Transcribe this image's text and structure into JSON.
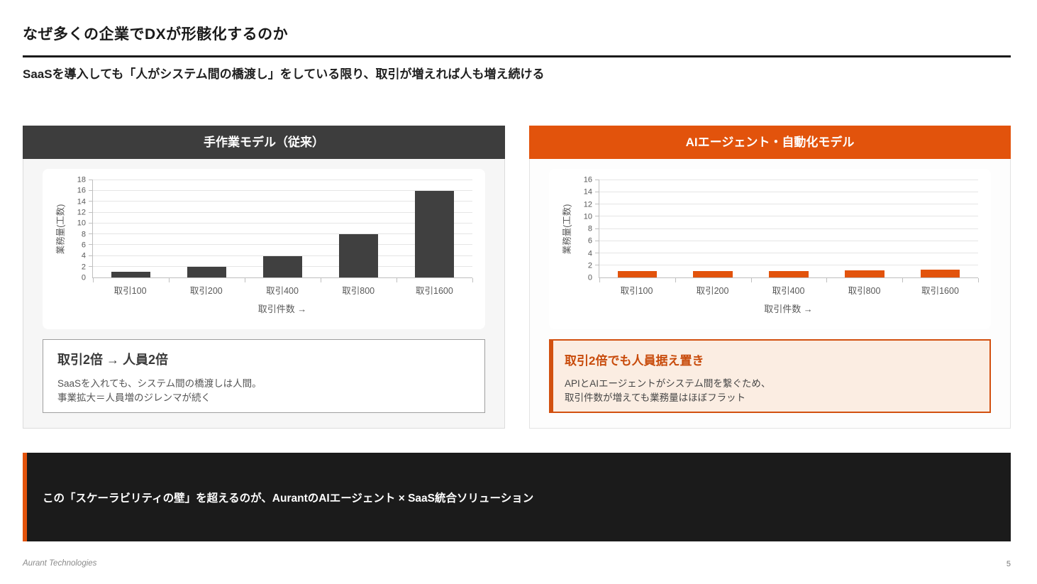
{
  "slide": {
    "title": "なぜ多くの企業でDXが形骸化するのか",
    "subtitle": "SaaSを導入しても「人がシステム間の橋渡し」をしている限り、取引が増えれば人も増え続ける"
  },
  "left_panel": {
    "header": "手作業モデル（従来）",
    "callout": {
      "title": "取引2倍 → 人員2倍",
      "line1": "SaaSを入れても、システム間の橋渡しは人間。",
      "line2": "事業拡大＝人員増のジレンマが続く"
    }
  },
  "right_panel": {
    "header": "AIエージェント・自動化モデル",
    "callout": {
      "title": "取引2倍でも人員据え置き",
      "line1": "APIとAIエージェントがシステム間を繋ぐため、",
      "line2": "取引件数が増えても業務量はほぼフラット"
    }
  },
  "banner": {
    "text": "この「スケーラビリティの壁」を超えるのが、AurantのAIエージェント × SaaS統合ソリューション"
  },
  "footer": {
    "company": "Aurant Technologies",
    "page_number": "5"
  },
  "colors": {
    "accent_orange": "#e2530c",
    "dark_header": "#3d3d3d",
    "banner_bg": "#1b1b1b",
    "bar_dark": "#404040",
    "callout_orange_bg": "#fbede2",
    "callout_orange_border": "#d2500f"
  },
  "chart_data": [
    {
      "type": "bar",
      "title": "手作業モデル（従来）",
      "categories": [
        "取引100",
        "取引200",
        "取引400",
        "取引800",
        "取引1600"
      ],
      "values": [
        1,
        2,
        4,
        8,
        16
      ],
      "xlabel": "取引件数 →",
      "ylabel": "業務量(工数)",
      "ylim": [
        0,
        18
      ],
      "ytick_step": 2,
      "bar_color": "#404040",
      "grid": true,
      "legend": false
    },
    {
      "type": "bar",
      "title": "AIエージェント・自動化モデル",
      "categories": [
        "取引100",
        "取引200",
        "取引400",
        "取引800",
        "取引1600"
      ],
      "values": [
        1,
        1.1,
        1.1,
        1.15,
        1.25
      ],
      "xlabel": "取引件数 →",
      "ylabel": "業務量(工数)",
      "ylim": [
        0,
        16
      ],
      "ytick_step": 2,
      "bar_color": "#e2530c",
      "grid": true,
      "legend": false
    }
  ]
}
